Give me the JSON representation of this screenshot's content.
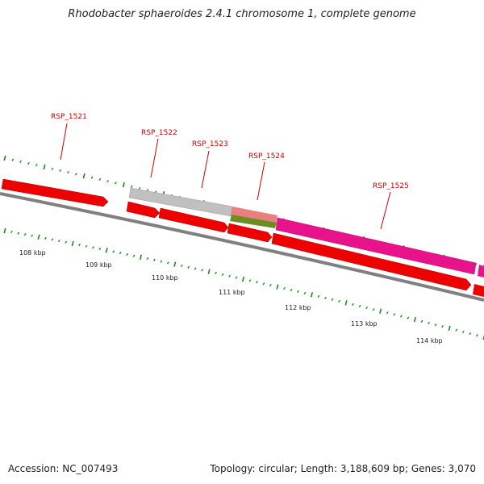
{
  "title": "Rhodobacter sphaeroides 2.4.1 chromosome 1, complete genome",
  "footer": {
    "accession": "Accession: NC_007493",
    "summary": "Topology: circular; Length: 3,188,609 bp; Genes: 3,070"
  },
  "ruler": {
    "ticks": [
      {
        "kbp": 108,
        "label": "108 kbp"
      },
      {
        "kbp": 109,
        "label": "109 kbp"
      },
      {
        "kbp": 110,
        "label": "110 kbp"
      },
      {
        "kbp": 111,
        "label": "111 kbp"
      },
      {
        "kbp": 112,
        "label": "112 kbp"
      },
      {
        "kbp": 113,
        "label": "113 kbp"
      },
      {
        "kbp": 114,
        "label": "114 kbp"
      }
    ]
  },
  "gene_labels": [
    "RSP_1521",
    "RSP_1522",
    "RSP_1523",
    "RSP_1524",
    "RSP_1525"
  ],
  "colors": {
    "gene_red": "#ee0000",
    "gene_gray": "#c0c0c0",
    "gene_pink": "#e8138a",
    "gene_salmon": "#e88080",
    "gene_olive": "#6b8e23",
    "backbone": "#808080",
    "tick": "#1a8a1a",
    "label": "#cc0000"
  }
}
